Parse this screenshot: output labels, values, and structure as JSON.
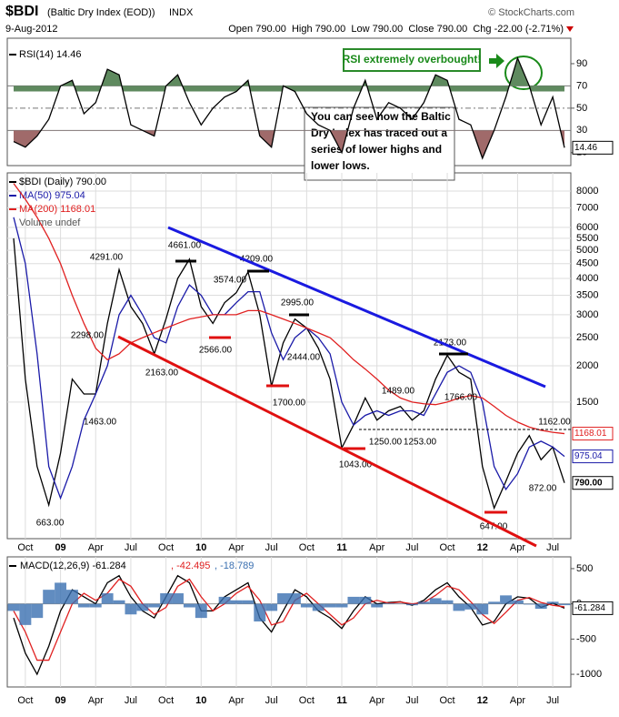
{
  "header": {
    "symbol": "$BDI",
    "name": "(Baltic Dry Index (EOD))",
    "exchange": "INDX",
    "source": "© StockCharts.com",
    "date": "9-Aug-2012",
    "quote": "Open 790.00  High 790.00  Low 790.00  Close 790.00  Chg -22.00 (-2.71%)"
  },
  "callouts": {
    "overbought": "RSI extremely overbought!",
    "note": [
      "You can see how the Baltic",
      "Dry Index has traced out a",
      "series of lower highs and",
      "lower lows."
    ]
  },
  "chart_data": [
    {
      "type": "line",
      "ylim": [
        0,
        100
      ],
      "yticks": [
        10,
        30,
        50,
        70,
        90
      ],
      "overbought": 70,
      "oversold": 30,
      "series": [
        {
          "name": "RSI(14) 14.46",
          "color": "#000000",
          "last_label": "14.46",
          "values": [
            20,
            15,
            25,
            40,
            70,
            75,
            45,
            55,
            85,
            80,
            35,
            30,
            25,
            70,
            80,
            55,
            35,
            50,
            60,
            65,
            75,
            25,
            15,
            70,
            65,
            45,
            35,
            30,
            10,
            50,
            75,
            40,
            55,
            50,
            40,
            55,
            80,
            75,
            40,
            35,
            5,
            30,
            60,
            95,
            70,
            35,
            60,
            14.46
          ]
        }
      ]
    },
    {
      "type": "line",
      "log_scale": true,
      "ylim": [
        515,
        8600
      ],
      "yticks": [
        1500,
        2000,
        2500,
        3000,
        3500,
        4000,
        4500,
        5000,
        5500,
        6000,
        7000,
        8000
      ],
      "grid": true,
      "categories": [
        null,
        "Oct",
        null,
        null,
        "09",
        null,
        null,
        "Apr",
        null,
        null,
        "Jul",
        null,
        null,
        "Oct",
        null,
        null,
        "10",
        null,
        null,
        "Apr",
        null,
        null,
        "Jul",
        null,
        null,
        "Oct",
        null,
        null,
        "11",
        null,
        null,
        "Apr",
        null,
        null,
        "Jul",
        null,
        null,
        "Oct",
        null,
        null,
        "12",
        null,
        null,
        "Apr",
        null,
        null,
        "Jul",
        null
      ],
      "series": [
        {
          "name": "$BDI (Daily) 790.00",
          "color": "#000000",
          "last_label": "790.00",
          "values": [
            5500,
            1800,
            900,
            663,
            1000,
            1800,
            1600,
            1600,
            2800,
            4291,
            3200,
            2800,
            2200,
            2900,
            4000,
            4661,
            3200,
            2800,
            3300,
            3574,
            4209,
            3000,
            1700,
            2400,
            2900,
            2700,
            2300,
            1800,
            1043,
            1250,
            1550,
            1300,
            1400,
            1450,
            1300,
            1400,
            1800,
            2173,
            1900,
            1800,
            900,
            647,
            800,
            1000,
            1150,
            950,
            1050,
            790
          ]
        },
        {
          "name": "MA(50) 975.04",
          "color": "#1a1aa8",
          "last_label": "975.04",
          "values": [
            6500,
            4500,
            2200,
            900,
            700,
            900,
            1300,
            1600,
            2000,
            3000,
            3500,
            3000,
            2500,
            2400,
            3200,
            3800,
            3500,
            3000,
            3000,
            3300,
            3600,
            3600,
            2600,
            2100,
            2500,
            2700,
            2500,
            2200,
            1500,
            1250,
            1350,
            1400,
            1350,
            1400,
            1400,
            1350,
            1600,
            1900,
            2000,
            1900,
            1500,
            900,
            750,
            850,
            1050,
            1100,
            1050,
            975.04
          ]
        },
        {
          "name": "MA(200) 1168.01",
          "color": "#e02020",
          "last_label": "1168.01",
          "values": [
            8500,
            7500,
            6500,
            5500,
            4500,
            3500,
            2800,
            2300,
            2100,
            2200,
            2400,
            2500,
            2600,
            2700,
            2800,
            2900,
            2950,
            3000,
            3000,
            3000,
            3100,
            3100,
            3000,
            2900,
            2800,
            2700,
            2600,
            2500,
            2300,
            2100,
            1950,
            1800,
            1650,
            1550,
            1500,
            1480,
            1470,
            1500,
            1550,
            1580,
            1550,
            1450,
            1350,
            1280,
            1230,
            1200,
            1180,
            1168.01
          ]
        }
      ],
      "extra_legend": "Volume undef",
      "annotations": [
        "663.00",
        "4291.00",
        "2298.00",
        "1463.00",
        "4661.00",
        "2163.00",
        "3574.00",
        "2566.00",
        "4209.00",
        "2995.00",
        "2444.00",
        "1700.00",
        "1489.00",
        "1043.00",
        "1250.00",
        "1253.00",
        "2173.00",
        "1766.00",
        "1162.00",
        "872.00",
        "647.00"
      ]
    },
    {
      "type": "line",
      "ylim": [
        -1180,
        667
      ],
      "yticks": [
        -1000,
        -500,
        0,
        500
      ],
      "categories": [
        null,
        "Oct",
        null,
        null,
        "09",
        null,
        null,
        "Apr",
        null,
        null,
        "Jul",
        null,
        null,
        "Oct",
        null,
        null,
        "10",
        null,
        null,
        "Apr",
        null,
        null,
        "Jul",
        null,
        null,
        "Oct",
        null,
        null,
        "11",
        null,
        null,
        "Apr",
        null,
        null,
        "Jul",
        null,
        null,
        "Oct",
        null,
        null,
        "12",
        null,
        null,
        "Apr",
        null,
        null,
        "Jul",
        null
      ],
      "series": [
        {
          "name": "MACD(12,26,9) -61.284",
          "color": "#000000",
          "last_label": "-61.284",
          "values": [
            -200,
            -700,
            -1000,
            -600,
            -100,
            200,
            100,
            0,
            300,
            400,
            100,
            -100,
            -200,
            100,
            400,
            300,
            -100,
            -100,
            100,
            200,
            300,
            -200,
            -400,
            -100,
            200,
            100,
            -100,
            -200,
            -350,
            -100,
            100,
            0,
            20,
            30,
            -20,
            50,
            200,
            300,
            100,
            -50,
            -300,
            -250,
            0,
            100,
            80,
            -50,
            10,
            -61.284
          ]
        },
        {
          "name": ", -42.495",
          "color": "#e02020",
          "values": [
            -100,
            -400,
            -800,
            -800,
            -400,
            0,
            150,
            50,
            150,
            350,
            250,
            0,
            -150,
            -50,
            250,
            350,
            100,
            -100,
            0,
            150,
            250,
            50,
            -300,
            -250,
            50,
            150,
            0,
            -150,
            -300,
            -200,
            0,
            50,
            10,
            25,
            0,
            20,
            120,
            250,
            200,
            30,
            -150,
            -280,
            -120,
            50,
            90,
            20,
            -20,
            -42.495
          ]
        },
        {
          "name": ", -18.789",
          "color": "#3a6fb0",
          "bars": true,
          "values": [
            -100,
            -300,
            -200,
            200,
            300,
            200,
            -50,
            -50,
            150,
            50,
            -150,
            -100,
            -50,
            150,
            150,
            -50,
            -200,
            0,
            100,
            50,
            50,
            -250,
            -100,
            150,
            150,
            -50,
            -100,
            -50,
            -50,
            100,
            100,
            -50,
            10,
            5,
            -20,
            30,
            80,
            50,
            -100,
            -80,
            -150,
            30,
            120,
            50,
            -10,
            -70,
            30,
            -18.789
          ]
        }
      ]
    }
  ]
}
